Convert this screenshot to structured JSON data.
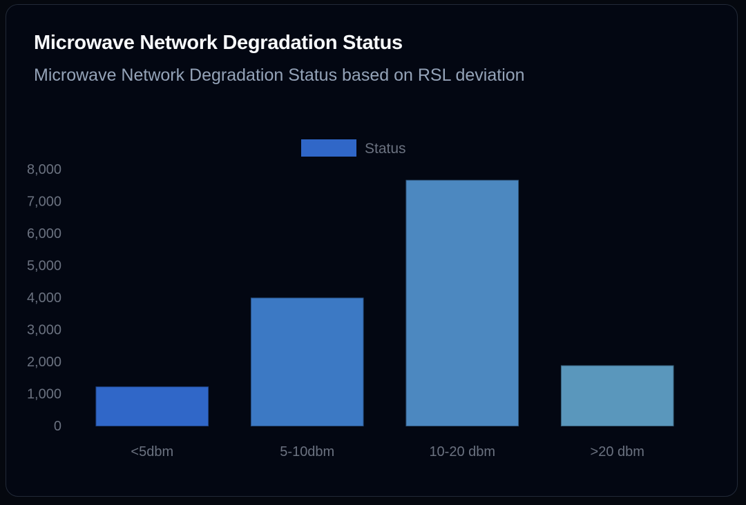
{
  "card": {
    "title": "Microwave Network Degradation Status",
    "subtitle": "Microwave Network Degradation Status based on RSL deviation"
  },
  "chart_data": {
    "type": "bar",
    "categories": [
      "<5dbm",
      "5-10dbm",
      "10-20 dbm",
      ">20 dbm"
    ],
    "series": [
      {
        "name": "Status",
        "values": [
          1200,
          3970,
          7640,
          1860
        ]
      }
    ],
    "bar_colors": [
      "#3067c8",
      "#3c79c4",
      "#4c88c0",
      "#5a97bc"
    ],
    "legend_color": "#3067c8",
    "legend_position": "top-center",
    "ylim": [
      0,
      8000
    ],
    "yticks": [
      0,
      1000,
      2000,
      3000,
      4000,
      5000,
      6000,
      7000,
      8000
    ],
    "ytick_labels": [
      "0",
      "1,000",
      "2,000",
      "3,000",
      "4,000",
      "5,000",
      "6,000",
      "7,000",
      "8,000"
    ],
    "grid": false,
    "xlabel": "",
    "ylabel": ""
  }
}
